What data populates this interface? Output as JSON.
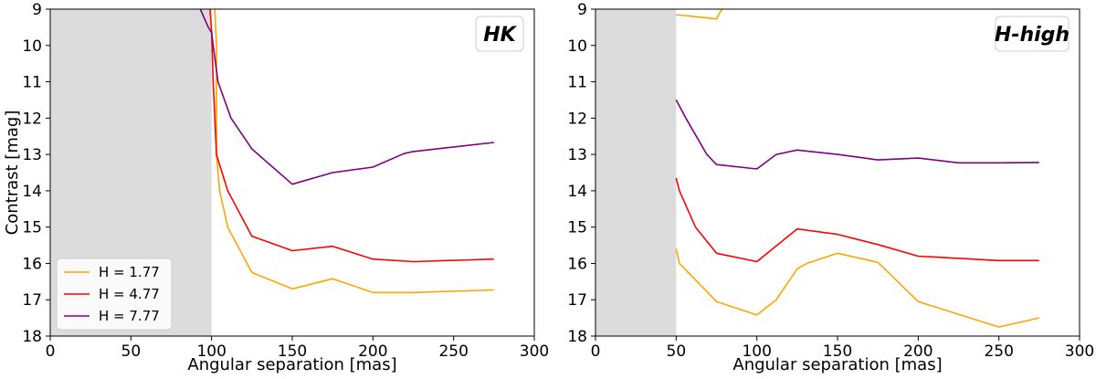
{
  "chart_data": [
    {
      "type": "line",
      "panel_label": "HK",
      "xlabel": "Angular separation [mas]",
      "ylabel": "Contrast [mag]",
      "xlim": [
        0,
        300
      ],
      "ylim": [
        18,
        9
      ],
      "y_inverted": true,
      "x_ticks": [
        0,
        50,
        100,
        150,
        200,
        250,
        300
      ],
      "y_ticks": [
        9,
        10,
        11,
        12,
        13,
        14,
        15,
        16,
        17,
        18
      ],
      "shaded_region": {
        "x_from": 0,
        "x_to": 100,
        "color": "#dcdcdc"
      },
      "legend": {
        "placement": "lower-left"
      },
      "series": [
        {
          "name": "H = 1.77",
          "color": "#ffa500",
          "x": [
            102,
            103,
            103,
            105,
            110,
            125,
            150,
            175,
            200,
            225,
            275
          ],
          "y": [
            9.0,
            10.0,
            13.0,
            14.0,
            15.0,
            16.25,
            16.7,
            16.42,
            16.8,
            16.8,
            16.73
          ]
        },
        {
          "name": "H = 4.77",
          "color": "#ff0000",
          "x": [
            99,
            100,
            101,
            103,
            110,
            125,
            150,
            175,
            200,
            225,
            275
          ],
          "y": [
            9.0,
            9.6,
            11.0,
            13.0,
            14.0,
            15.25,
            15.65,
            15.53,
            15.88,
            15.95,
            15.88
          ]
        },
        {
          "name": "H = 7.77",
          "color": "#800080",
          "x": [
            93,
            98,
            100,
            101,
            104,
            112,
            125,
            150,
            175,
            200,
            219,
            225,
            275
          ],
          "y": [
            9.0,
            9.5,
            9.65,
            10.0,
            11.0,
            12.0,
            12.85,
            13.82,
            13.5,
            13.35,
            12.98,
            12.92,
            12.67
          ]
        }
      ]
    },
    {
      "type": "line",
      "panel_label": "H-high",
      "xlabel": "Angular separation [mas]",
      "ylabel": "",
      "xlim": [
        0,
        300
      ],
      "ylim": [
        18,
        9
      ],
      "y_inverted": true,
      "x_ticks": [
        0,
        50,
        100,
        150,
        200,
        250,
        300
      ],
      "y_ticks": [
        9,
        10,
        11,
        12,
        13,
        14,
        15,
        16,
        17,
        18
      ],
      "shaded_region": {
        "x_from": 0,
        "x_to": 50,
        "color": "#dcdcdc"
      },
      "series": [
        {
          "name": "H = 1.77",
          "color": "#ffa500",
          "segments": [
            {
              "x": [
                50,
                75,
                77,
                80
              ],
              "y": [
                9.15,
                9.27,
                9.1,
                8.9
              ]
            },
            {
              "x": [
                50,
                52,
                75,
                100,
                112,
                125,
                131,
                150,
                175,
                200,
                250,
                275
              ],
              "y": [
                15.6,
                16.0,
                17.05,
                17.42,
                17.0,
                16.15,
                16.0,
                15.72,
                15.97,
                17.05,
                17.75,
                17.5
              ]
            }
          ]
        },
        {
          "name": "H = 4.77",
          "color": "#ff0000",
          "segments": [
            {
              "x": [
                50,
                52,
                62,
                75,
                100,
                125,
                150,
                175,
                200,
                250,
                275
              ],
              "y": [
                13.65,
                14.0,
                15.0,
                15.72,
                15.95,
                15.05,
                15.2,
                15.48,
                15.8,
                15.92,
                15.92
              ]
            }
          ]
        },
        {
          "name": "H = 7.77",
          "color": "#800080",
          "segments": [
            {
              "x": [
                50,
                56,
                69,
                75,
                100,
                112,
                125,
                150,
                175,
                200,
                225,
                250,
                275
              ],
              "y": [
                11.5,
                12.0,
                13.0,
                13.28,
                13.4,
                13.0,
                12.88,
                13.0,
                13.15,
                13.1,
                13.23,
                13.23,
                13.22
              ]
            }
          ]
        }
      ]
    }
  ]
}
